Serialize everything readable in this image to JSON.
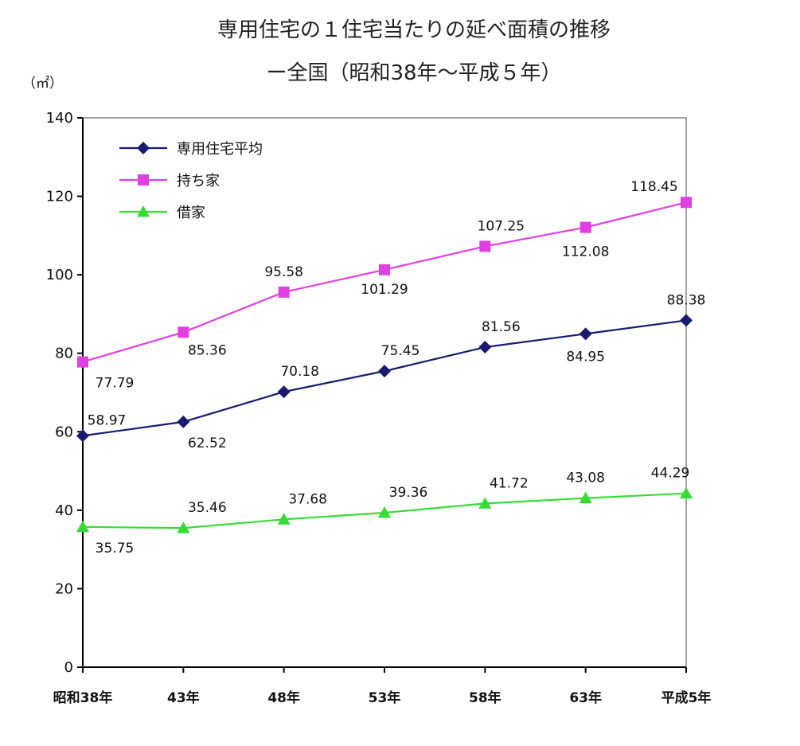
{
  "chart_data": {
    "type": "line",
    "title": "専用住宅の１住宅当たりの延べ面積の推移",
    "subtitle": "ー全国（昭和38年～平成５年）",
    "y_unit": "（㎡）",
    "categories": [
      "昭和38年",
      "43年",
      "48年",
      "53年",
      "58年",
      "63年",
      "平成5年"
    ],
    "ylim": [
      0,
      140
    ],
    "y_ticks": [
      "0",
      "20",
      "40",
      "60",
      "80",
      "100",
      "120",
      "140"
    ],
    "grid": false,
    "legend_position": "top-left",
    "series": [
      {
        "name": "専用住宅平均",
        "color": "#1a1a6e",
        "marker": "diamond",
        "values": [
          58.97,
          62.52,
          70.18,
          75.45,
          81.56,
          84.95,
          88.38
        ],
        "labels": [
          "58.97",
          "62.52",
          "70.18",
          "75.45",
          "81.56",
          "84.95",
          "88.38"
        ]
      },
      {
        "name": "持ち家",
        "color": "#e040e0",
        "marker": "square",
        "values": [
          77.79,
          85.36,
          95.58,
          101.29,
          107.25,
          112.08,
          118.45
        ],
        "labels": [
          "77.79",
          "85.36",
          "95.58",
          "101.29",
          "107.25",
          "112.08",
          "118.45"
        ]
      },
      {
        "name": "借家",
        "color": "#33dd33",
        "marker": "triangle",
        "values": [
          35.75,
          35.46,
          37.68,
          39.36,
          41.72,
          43.08,
          44.29
        ],
        "labels": [
          "35.75",
          "35.46",
          "37.68",
          "39.36",
          "41.72",
          "43.08",
          "44.29"
        ]
      }
    ]
  }
}
